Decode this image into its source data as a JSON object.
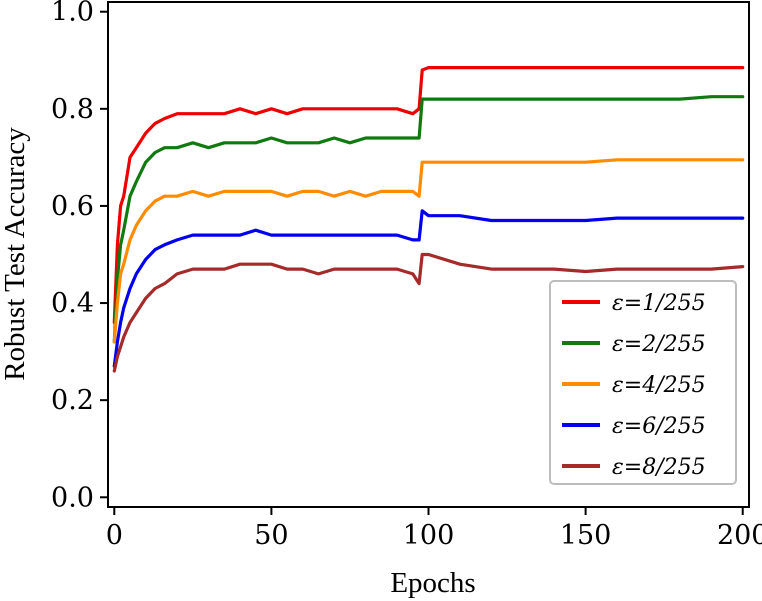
{
  "chart_data": {
    "type": "line",
    "title": "",
    "xlabel": "Epochs",
    "ylabel": "Robust Test Accuracy",
    "xlim": [
      -2,
      202
    ],
    "ylim": [
      -0.02,
      1.02
    ],
    "xticks": [
      0,
      50,
      100,
      150,
      200
    ],
    "xtick_labels": [
      "0",
      "50",
      "100",
      "150",
      "200"
    ],
    "yticks": [
      0.0,
      0.2,
      0.4,
      0.6,
      0.8,
      1.0
    ],
    "ytick_labels": [
      "0.0",
      "0.2",
      "0.4",
      "0.6",
      "0.8",
      "1.0"
    ],
    "grid": false,
    "legend_position": "lower-right",
    "series": [
      {
        "name": "ε=1/255",
        "color": "#ee0000",
        "x": [
          0,
          1,
          2,
          3,
          5,
          7,
          10,
          13,
          16,
          20,
          25,
          30,
          35,
          40,
          45,
          50,
          55,
          60,
          65,
          70,
          75,
          80,
          85,
          90,
          95,
          97,
          98,
          100,
          110,
          120,
          130,
          140,
          150,
          160,
          170,
          180,
          190,
          200
        ],
        "y": [
          0.36,
          0.52,
          0.6,
          0.62,
          0.7,
          0.72,
          0.75,
          0.77,
          0.78,
          0.79,
          0.79,
          0.79,
          0.79,
          0.8,
          0.79,
          0.8,
          0.79,
          0.8,
          0.8,
          0.8,
          0.8,
          0.8,
          0.8,
          0.8,
          0.79,
          0.8,
          0.88,
          0.885,
          0.885,
          0.885,
          0.885,
          0.885,
          0.885,
          0.885,
          0.885,
          0.885,
          0.885,
          0.885
        ]
      },
      {
        "name": "ε=2/255",
        "color": "#107a10",
        "x": [
          0,
          1,
          2,
          3,
          5,
          7,
          10,
          13,
          16,
          20,
          25,
          30,
          35,
          40,
          45,
          50,
          55,
          60,
          65,
          70,
          75,
          80,
          85,
          90,
          95,
          97,
          98,
          100,
          110,
          120,
          130,
          140,
          150,
          160,
          170,
          180,
          190,
          200
        ],
        "y": [
          0.32,
          0.45,
          0.52,
          0.55,
          0.62,
          0.65,
          0.69,
          0.71,
          0.72,
          0.72,
          0.73,
          0.72,
          0.73,
          0.73,
          0.73,
          0.74,
          0.73,
          0.73,
          0.73,
          0.74,
          0.73,
          0.74,
          0.74,
          0.74,
          0.74,
          0.74,
          0.82,
          0.82,
          0.82,
          0.82,
          0.82,
          0.82,
          0.82,
          0.82,
          0.82,
          0.82,
          0.825,
          0.825
        ]
      },
      {
        "name": "ε=4/255",
        "color": "#ff8c00",
        "x": [
          0,
          1,
          2,
          3,
          5,
          7,
          10,
          13,
          16,
          20,
          25,
          30,
          35,
          40,
          45,
          50,
          55,
          60,
          65,
          70,
          75,
          80,
          85,
          90,
          95,
          97,
          98,
          100,
          110,
          120,
          130,
          140,
          150,
          160,
          170,
          180,
          190,
          200
        ],
        "y": [
          0.32,
          0.4,
          0.46,
          0.48,
          0.53,
          0.56,
          0.59,
          0.61,
          0.62,
          0.62,
          0.63,
          0.62,
          0.63,
          0.63,
          0.63,
          0.63,
          0.62,
          0.63,
          0.63,
          0.62,
          0.63,
          0.62,
          0.63,
          0.63,
          0.63,
          0.62,
          0.69,
          0.69,
          0.69,
          0.69,
          0.69,
          0.69,
          0.69,
          0.695,
          0.695,
          0.695,
          0.695,
          0.695
        ]
      },
      {
        "name": "ε=6/255",
        "color": "#0000ee",
        "x": [
          0,
          1,
          2,
          3,
          5,
          7,
          10,
          13,
          16,
          20,
          25,
          30,
          35,
          40,
          45,
          50,
          55,
          60,
          65,
          70,
          75,
          80,
          85,
          90,
          95,
          97,
          98,
          100,
          110,
          120,
          130,
          140,
          150,
          160,
          170,
          180,
          190,
          200
        ],
        "y": [
          0.27,
          0.32,
          0.36,
          0.39,
          0.43,
          0.46,
          0.49,
          0.51,
          0.52,
          0.53,
          0.54,
          0.54,
          0.54,
          0.54,
          0.55,
          0.54,
          0.54,
          0.54,
          0.54,
          0.54,
          0.54,
          0.54,
          0.54,
          0.54,
          0.53,
          0.53,
          0.59,
          0.58,
          0.58,
          0.57,
          0.57,
          0.57,
          0.57,
          0.575,
          0.575,
          0.575,
          0.575,
          0.575
        ]
      },
      {
        "name": "ε=8/255",
        "color": "#a52a2a",
        "x": [
          0,
          1,
          2,
          3,
          5,
          7,
          10,
          13,
          16,
          20,
          25,
          30,
          35,
          40,
          45,
          50,
          55,
          60,
          65,
          70,
          75,
          80,
          85,
          90,
          95,
          97,
          98,
          100,
          110,
          120,
          130,
          140,
          150,
          160,
          170,
          180,
          190,
          200
        ],
        "y": [
          0.26,
          0.29,
          0.31,
          0.33,
          0.36,
          0.38,
          0.41,
          0.43,
          0.44,
          0.46,
          0.47,
          0.47,
          0.47,
          0.48,
          0.48,
          0.48,
          0.47,
          0.47,
          0.46,
          0.47,
          0.47,
          0.47,
          0.47,
          0.47,
          0.46,
          0.44,
          0.5,
          0.5,
          0.48,
          0.47,
          0.47,
          0.47,
          0.465,
          0.47,
          0.47,
          0.47,
          0.47,
          0.475
        ]
      }
    ]
  }
}
